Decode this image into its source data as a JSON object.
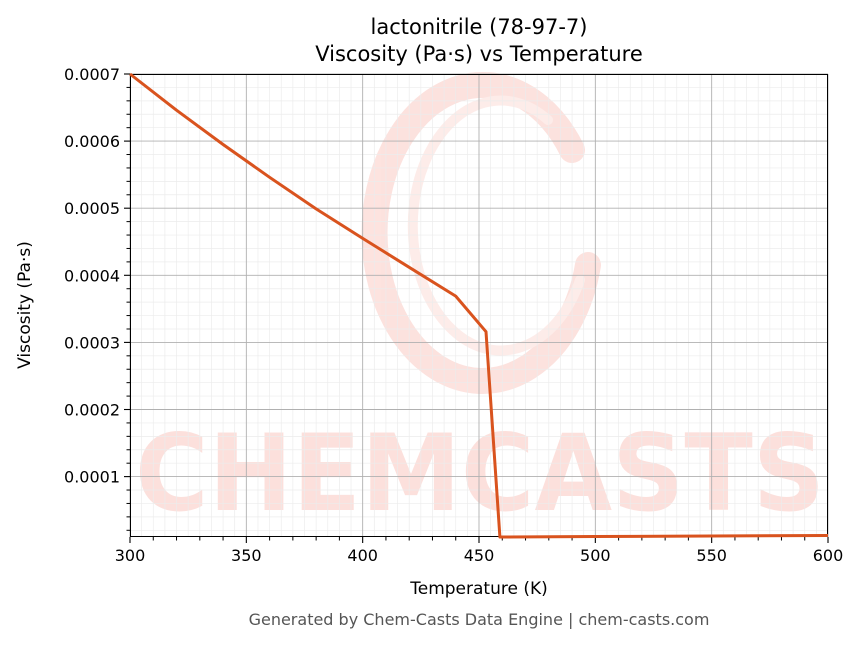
{
  "chart_data": {
    "type": "line",
    "title": "lactonitrile (78-97-7)",
    "subtitle": "Viscosity (Pa·s) vs Temperature",
    "xlabel": "Temperature (K)",
    "ylabel": "Viscosity (Pa·s)",
    "xlim": [
      300,
      600
    ],
    "ylim": [
      1e-05,
      0.0007
    ],
    "x_ticks": [
      300,
      350,
      400,
      450,
      500,
      550,
      600
    ],
    "x_tick_labels": [
      "300",
      "350",
      "400",
      "450",
      "500",
      "550",
      "600"
    ],
    "y_ticks": [
      0.0001,
      0.0002,
      0.0003,
      0.0004,
      0.0005,
      0.0006,
      0.0007
    ],
    "y_tick_labels": [
      "0.0001",
      "0.0002",
      "0.0003",
      "0.0004",
      "0.0005",
      "0.0006",
      "0.0007"
    ],
    "grid": true,
    "minor_grid": true,
    "series": [
      {
        "color": "#d9531e",
        "x": [
          300,
          320,
          340,
          360,
          380,
          400,
          420,
          440,
          453,
          459,
          500,
          550,
          600
        ],
        "values": [
          0.0007,
          0.000646,
          0.000595,
          0.000546,
          0.000499,
          0.000455,
          0.000412,
          0.000369,
          0.000316,
          1e-05,
          1.07e-05,
          1.15e-05,
          1.23e-05
        ]
      }
    ]
  },
  "watermark": {
    "text": "CHEMCASTS",
    "color": "#fcd9d4"
  },
  "footer": "Generated by Chem-Casts Data Engine | chem-casts.com"
}
